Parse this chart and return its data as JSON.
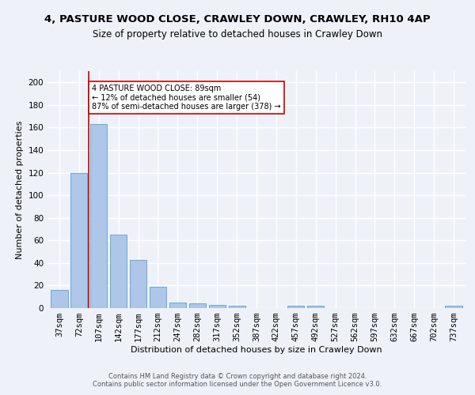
{
  "title": "4, PASTURE WOOD CLOSE, CRAWLEY DOWN, CRAWLEY, RH10 4AP",
  "subtitle": "Size of property relative to detached houses in Crawley Down",
  "xlabel": "Distribution of detached houses by size in Crawley Down",
  "ylabel": "Number of detached properties",
  "bar_labels": [
    "37sqm",
    "72sqm",
    "107sqm",
    "142sqm",
    "177sqm",
    "212sqm",
    "247sqm",
    "282sqm",
    "317sqm",
    "352sqm",
    "387sqm",
    "422sqm",
    "457sqm",
    "492sqm",
    "527sqm",
    "562sqm",
    "597sqm",
    "632sqm",
    "667sqm",
    "702sqm",
    "737sqm"
  ],
  "bar_values": [
    16,
    120,
    163,
    65,
    43,
    19,
    5,
    4,
    3,
    2,
    0,
    0,
    2,
    2,
    0,
    0,
    0,
    0,
    0,
    0,
    2
  ],
  "bar_color": "#aec6e8",
  "bar_edge_color": "#5a9fd4",
  "vline_x": 1.5,
  "vline_color": "#cc0000",
  "annotation_text": "4 PASTURE WOOD CLOSE: 89sqm\n← 12% of detached houses are smaller (54)\n87% of semi-detached houses are larger (378) →",
  "annotation_box_color": "#ffffff",
  "annotation_box_edge": "#cc0000",
  "ylim": [
    0,
    210
  ],
  "yticks": [
    0,
    20,
    40,
    60,
    80,
    100,
    120,
    140,
    160,
    180,
    200
  ],
  "footer1": "Contains HM Land Registry data © Crown copyright and database right 2024.",
  "footer2": "Contains public sector information licensed under the Open Government Licence v3.0.",
  "bg_color": "#eef2f8",
  "plot_bg_color": "#eef2f8",
  "grid_color": "#ffffff",
  "title_fontsize": 9.5,
  "subtitle_fontsize": 8.5,
  "axis_label_fontsize": 8,
  "tick_fontsize": 7.5,
  "footer_fontsize": 6.0
}
